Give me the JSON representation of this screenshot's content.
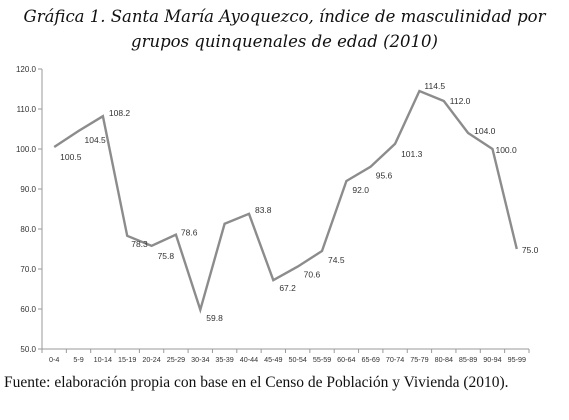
{
  "title_line1": "Gráfica 1. Santa María Ayoquezco, índice de masculinidad por",
  "title_line2": "grupos quinquenales de edad (2010)",
  "source": "Fuente: elaboración propia con base en el Censo de Población y Vivienda (2010).",
  "colors": {
    "line": "#8c8c8c",
    "axis": "#9a9a9a",
    "text": "#333333"
  },
  "chart_data": {
    "type": "line",
    "title": "",
    "xlabel": "",
    "ylabel": "",
    "ylim": [
      50,
      120
    ],
    "yticks": [
      "50.0",
      "60.0",
      "70.0",
      "80.0",
      "90.0",
      "100.0",
      "110.0",
      "120.0"
    ],
    "grid": false,
    "categories": [
      "0-4",
      "5-9",
      "10-14",
      "15-19",
      "20-24",
      "25-29",
      "30-34",
      "35-39",
      "40-44",
      "45-49",
      "50-54",
      "55-59",
      "60-64",
      "65-69",
      "70-74",
      "75-79",
      "80-84",
      "85-89",
      "90-94",
      "95-99"
    ],
    "values": [
      100.5,
      104.5,
      108.2,
      78.3,
      75.8,
      78.6,
      59.8,
      81.3,
      83.8,
      67.2,
      70.6,
      74.5,
      92.0,
      95.6,
      101.3,
      114.5,
      112.0,
      104.0,
      100.0,
      75.0
    ],
    "labels": [
      "100.5",
      "104.5",
      "108.2",
      "78.3",
      "75.8",
      "78.6",
      "59.8",
      "",
      "83.8",
      "67.2",
      "70.6",
      "74.5",
      "92.0",
      "95.6",
      "101.3",
      "114.5",
      "112.0",
      "104.0",
      "100.0",
      "75.0"
    ]
  }
}
